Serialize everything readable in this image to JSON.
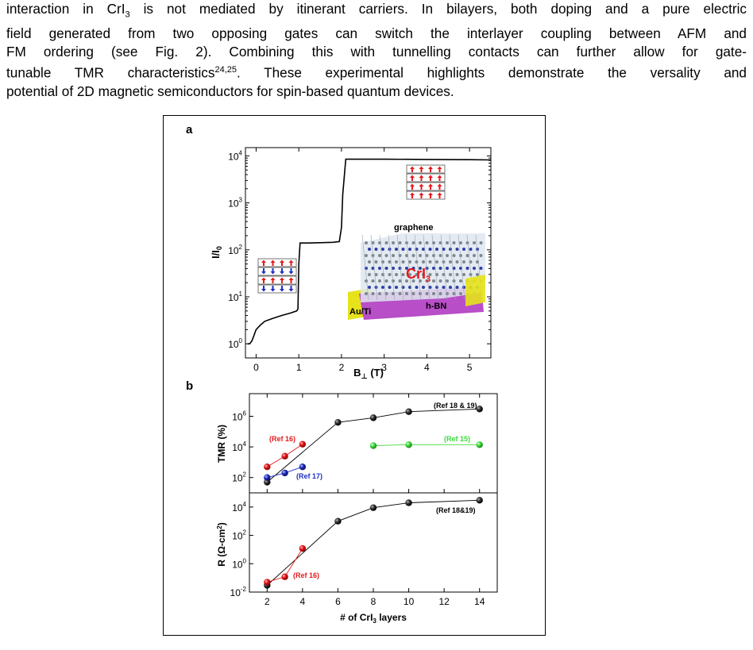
{
  "paragraph": {
    "line1_a": "interaction in CrI",
    "line1_sub": "3",
    "line1_b": " is not mediated by itinerant carriers. In bilayers, both doping and a pure electric",
    "line2": "field generated from two opposing gates can switch the interlayer coupling between AFM and",
    "line3": "FM ordering (see Fig. 2). Combining this with tunnelling contacts can further allow for gate-",
    "line4_a": "tunable TMR characteristics",
    "line4_sup": "24,25",
    "line4_b": ". These experimental highlights demonstrate the versality and",
    "line5": "potential of 2D magnetic semiconductors for spin-based quantum devices."
  },
  "figure": {
    "panel_a_label": "a",
    "panel_b_label": "b",
    "inset": {
      "graphene_label": "graphene",
      "cri3_label": "CrI",
      "cri3_sub": "3",
      "hbn_label": "h-BN",
      "auti_label": "Au/Ti"
    }
  },
  "chart_data": [
    {
      "type": "line",
      "panel": "a",
      "xlabel": "B",
      "xlabel_sub": "⊥",
      "xlabel_unit": " (T)",
      "ylabel": "I/I",
      "ylabel_sub": "0",
      "y_scale": "log",
      "xlim": [
        -0.25,
        5.5
      ],
      "ylim": [
        0.5,
        15000
      ],
      "x_ticks": [
        "0",
        "1",
        "2",
        "3",
        "4",
        "5"
      ],
      "x_tick_values": [
        0,
        1,
        2,
        3,
        4,
        5
      ],
      "y_tick_values": [
        1,
        10,
        100,
        1000,
        10000
      ],
      "y_tick_labels": [
        "10",
        "10",
        "10",
        "10",
        "10"
      ],
      "y_tick_exps": [
        "0",
        "1",
        "2",
        "3",
        "4"
      ],
      "series": [
        {
          "x": [
            -0.2,
            -0.15,
            -0.1,
            -0.05,
            0,
            0.1,
            0.2,
            0.4,
            0.6,
            0.8,
            0.95,
            0.98,
            1.0,
            1.03,
            1.2,
            1.5,
            1.8,
            1.95,
            2.0,
            2.03,
            2.1,
            2.5,
            3,
            4,
            5,
            5.5
          ],
          "y": [
            1.0,
            1.0,
            1.15,
            1.5,
            2.0,
            2.5,
            3.0,
            3.5,
            4.0,
            4.5,
            5.0,
            5.5,
            50,
            140,
            140,
            142,
            145,
            150,
            300,
            1500,
            8500,
            8500,
            8500,
            8400,
            8300,
            8200
          ]
        }
      ]
    },
    {
      "type": "scatter",
      "panel": "b-top",
      "ylabel": "TMR (%)",
      "y_scale": "log",
      "xlim": [
        1,
        15
      ],
      "ylim": [
        10,
        30000000
      ],
      "y_tick_values": [
        100,
        10000,
        1000000
      ],
      "y_tick_labels": [
        "10",
        "10",
        "10"
      ],
      "y_tick_exps": [
        "2",
        "4",
        "6"
      ],
      "series": [
        {
          "label": "(Ref 18 & 19)",
          "color": "#000000",
          "x": [
            2,
            6,
            8,
            10,
            14
          ],
          "y": [
            50,
            400000,
            800000,
            2000000,
            3000000
          ]
        },
        {
          "label": "(Ref 16)",
          "color": "#e31a1c",
          "x": [
            2,
            3,
            4
          ],
          "y": [
            500,
            2500,
            15000
          ]
        },
        {
          "label": "(Ref 17)",
          "color": "#1f2fbf",
          "x": [
            2,
            3,
            4
          ],
          "y": [
            100,
            200,
            500
          ]
        },
        {
          "label": "(Ref 15)",
          "color": "#3ddc3d",
          "x": [
            8,
            10,
            14
          ],
          "y": [
            12000,
            14000,
            14000
          ]
        }
      ]
    },
    {
      "type": "scatter",
      "panel": "b-bottom",
      "ylabel": "R (Ω-cm",
      "ylabel_sup": "2",
      "ylabel_end": ")",
      "xlabel": "# of CrI",
      "xlabel_sub": "3",
      "xlabel_end": " layers",
      "y_scale": "log",
      "xlim": [
        1,
        15
      ],
      "ylim": [
        0.01,
        100000
      ],
      "x_ticks": [
        "2",
        "4",
        "6",
        "8",
        "10",
        "12",
        "14"
      ],
      "x_tick_values": [
        2,
        4,
        6,
        8,
        10,
        12,
        14
      ],
      "y_tick_values": [
        0.01,
        1,
        100,
        10000
      ],
      "y_tick_labels": [
        "10",
        "10",
        "10",
        "10"
      ],
      "y_tick_exps": [
        "-2",
        "0",
        "2",
        "4"
      ],
      "series": [
        {
          "label": "(Ref 18&19)",
          "color": "#000000",
          "x": [
            2,
            6,
            8,
            10,
            14
          ],
          "y": [
            0.03,
            1000,
            9000,
            20000,
            30000
          ]
        },
        {
          "label": "(Ref 16)",
          "color": "#e31a1c",
          "x": [
            2,
            3,
            4
          ],
          "y": [
            0.05,
            0.12,
            12
          ]
        }
      ]
    }
  ]
}
